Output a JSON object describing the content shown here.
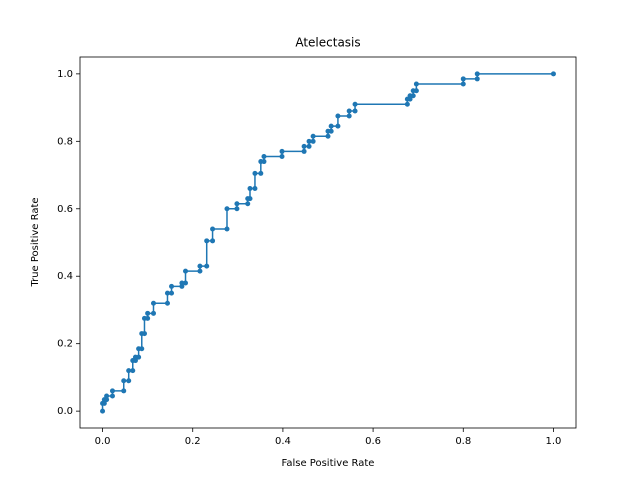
{
  "chart_data": {
    "type": "line",
    "title": "Atelectasis",
    "xlabel": "False Positive Rate",
    "ylabel": "True Positive Rate",
    "xlim": [
      -0.05,
      1.05
    ],
    "ylim": [
      -0.05,
      1.05
    ],
    "xticks": [
      {
        "value": 0,
        "label": "0.0"
      },
      {
        "value": 0.2,
        "label": "0.2"
      },
      {
        "value": 0.4,
        "label": "0.4"
      },
      {
        "value": 0.6,
        "label": "0.6"
      },
      {
        "value": 0.8,
        "label": "0.8"
      },
      {
        "value": 1,
        "label": "1.0"
      }
    ],
    "yticks": [
      {
        "value": 0,
        "label": "0.0"
      },
      {
        "value": 0.2,
        "label": "0.2"
      },
      {
        "value": 0.4,
        "label": "0.4"
      },
      {
        "value": 0.6,
        "label": "0.6"
      },
      {
        "value": 0.8,
        "label": "0.8"
      },
      {
        "value": 1,
        "label": "1.0"
      }
    ],
    "x": [
      0,
      0,
      0.004,
      0.004,
      0.009,
      0.009,
      0.022,
      0.022,
      0.047,
      0.047,
      0.058,
      0.058,
      0.067,
      0.067,
      0.073,
      0.073,
      0.08,
      0.08,
      0.087,
      0.087,
      0.093,
      0.093,
      0.1,
      0.1,
      0.113,
      0.113,
      0.144,
      0.144,
      0.153,
      0.153,
      0.176,
      0.176,
      0.184,
      0.184,
      0.216,
      0.216,
      0.231,
      0.231,
      0.244,
      0.244,
      0.276,
      0.276,
      0.298,
      0.298,
      0.322,
      0.322,
      0.327,
      0.327,
      0.338,
      0.338,
      0.351,
      0.351,
      0.358,
      0.358,
      0.398,
      0.398,
      0.447,
      0.447,
      0.458,
      0.458,
      0.467,
      0.467,
      0.5,
      0.5,
      0.507,
      0.507,
      0.522,
      0.522,
      0.547,
      0.547,
      0.56,
      0.56,
      0.676,
      0.676,
      0.682,
      0.682,
      0.689,
      0.689,
      0.696,
      0.696,
      0.8,
      0.8,
      0.831,
      0.831,
      1
    ],
    "series": [
      {
        "color": "#1f77b4",
        "values": [
          0,
          0.023,
          0.023,
          0.034,
          0.034,
          0.045,
          0.045,
          0.06,
          0.06,
          0.09,
          0.09,
          0.12,
          0.12,
          0.15,
          0.15,
          0.16,
          0.16,
          0.185,
          0.185,
          0.23,
          0.23,
          0.275,
          0.275,
          0.29,
          0.29,
          0.32,
          0.32,
          0.35,
          0.35,
          0.37,
          0.37,
          0.38,
          0.38,
          0.415,
          0.415,
          0.43,
          0.43,
          0.505,
          0.505,
          0.54,
          0.54,
          0.6,
          0.6,
          0.615,
          0.615,
          0.63,
          0.63,
          0.66,
          0.66,
          0.705,
          0.705,
          0.74,
          0.74,
          0.755,
          0.755,
          0.77,
          0.77,
          0.785,
          0.785,
          0.8,
          0.8,
          0.815,
          0.815,
          0.83,
          0.83,
          0.845,
          0.845,
          0.875,
          0.875,
          0.89,
          0.89,
          0.91,
          0.91,
          0.925,
          0.925,
          0.935,
          0.935,
          0.95,
          0.95,
          0.97,
          0.97,
          0.985,
          0.985,
          1,
          1
        ]
      }
    ]
  }
}
